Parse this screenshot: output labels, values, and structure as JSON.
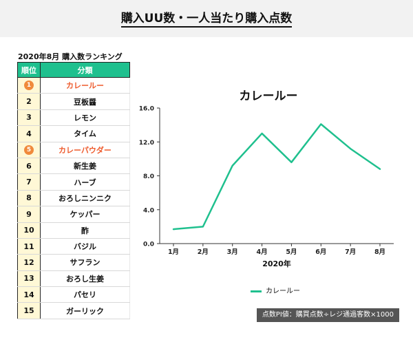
{
  "header": {
    "title": "購入UU数・一人当たり購入点数"
  },
  "ranking": {
    "caption": "2020年8月 購入数ランキング",
    "col_rank": "順位",
    "col_category": "分類",
    "rows": [
      {
        "rank": "1",
        "name": "カレールー",
        "highlight": true
      },
      {
        "rank": "2",
        "name": "豆板醤",
        "highlight": false
      },
      {
        "rank": "3",
        "name": "レモン",
        "highlight": false
      },
      {
        "rank": "4",
        "name": "タイム",
        "highlight": false
      },
      {
        "rank": "5",
        "name": "カレーパウダー",
        "highlight": true
      },
      {
        "rank": "6",
        "name": "新生姜",
        "highlight": false
      },
      {
        "rank": "7",
        "name": "ハーブ",
        "highlight": false
      },
      {
        "rank": "8",
        "name": "おろしニンニク",
        "highlight": false
      },
      {
        "rank": "9",
        "name": "ケッパー",
        "highlight": false
      },
      {
        "rank": "10",
        "name": "酢",
        "highlight": false
      },
      {
        "rank": "11",
        "name": "バジル",
        "highlight": false
      },
      {
        "rank": "12",
        "name": "サフラン",
        "highlight": false
      },
      {
        "rank": "13",
        "name": "おろし生姜",
        "highlight": false
      },
      {
        "rank": "14",
        "name": "パセリ",
        "highlight": false
      },
      {
        "rank": "15",
        "name": "ガーリック",
        "highlight": false
      }
    ]
  },
  "chart_data": {
    "type": "line",
    "title": "カレールー",
    "xlabel": "2020年",
    "ylabel": "",
    "categories": [
      "1月",
      "2月",
      "3月",
      "4月",
      "5月",
      "6月",
      "7月",
      "8月"
    ],
    "series": [
      {
        "name": "カレールー",
        "color": "#1fc08e",
        "values": [
          1.7,
          2.0,
          9.2,
          13.0,
          9.6,
          14.1,
          11.2,
          8.8
        ]
      }
    ],
    "y_ticks": [
      "0.0",
      "4.0",
      "8.0",
      "12.0",
      "16.0"
    ],
    "ylim": [
      0,
      16
    ],
    "grid": false,
    "legend_position": "bottom"
  },
  "footnote": "点数PI値：購買点数÷レジ通過客数×1000"
}
